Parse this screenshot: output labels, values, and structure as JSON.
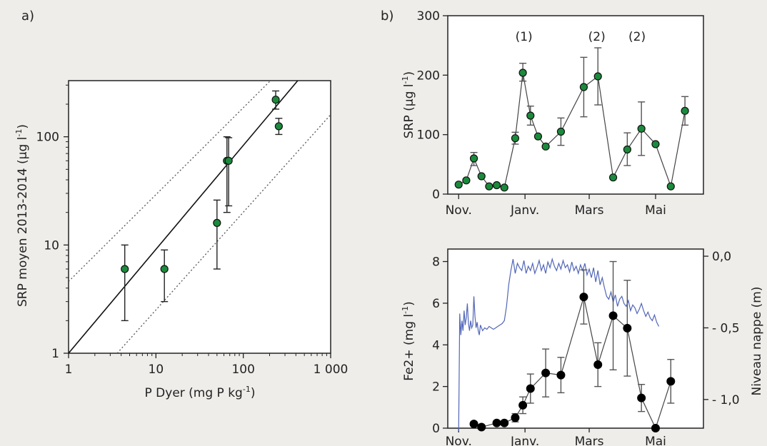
{
  "chart_data": [
    {
      "panel_label": "a)",
      "type": "scatter",
      "xscale": "log",
      "yscale": "log",
      "xlim": [
        1,
        1000
      ],
      "ylim": [
        1,
        330
      ],
      "xlabel_base": "P Dyer (mg P kg",
      "xlabel_sup": "-1",
      "xlabel_tail": ")",
      "ylabel_base": "SRP moyen 2013-2014 (µg l",
      "ylabel_sup": "-1",
      "ylabel_tail": ")",
      "xticks": [
        1,
        10,
        100,
        1000
      ],
      "xtick_labels": [
        "1",
        "10",
        "100",
        "1 000"
      ],
      "yticks": [
        1,
        10,
        100
      ],
      "ytick_labels": [
        "1",
        "10",
        "100"
      ],
      "points": [
        {
          "x": 4.4,
          "y": 6.0,
          "lo": 2.0,
          "hi": 10.0
        },
        {
          "x": 12.5,
          "y": 6.0,
          "lo": 3.0,
          "hi": 9.0
        },
        {
          "x": 50,
          "y": 16,
          "lo": 6.0,
          "hi": 26
        },
        {
          "x": 65,
          "y": 60,
          "lo": 20,
          "hi": 100
        },
        {
          "x": 68,
          "y": 60,
          "lo": 23,
          "hi": 98
        },
        {
          "x": 235,
          "y": 220,
          "lo": 180,
          "hi": 265
        },
        {
          "x": 255,
          "y": 125,
          "lo": 105,
          "hi": 148
        }
      ],
      "fit_line": [
        [
          1,
          1
        ],
        [
          420,
          330
        ]
      ],
      "ci_upper": [
        [
          1,
          4.6
        ],
        [
          205,
          330
        ]
      ],
      "ci_lower": [
        [
          3.6,
          1
        ],
        [
          1000,
          160
        ]
      ],
      "marker_color": "#1b8a3c"
    },
    {
      "panel_label": "b)",
      "type": "line",
      "ylabel_base": "SRP (µg l",
      "ylabel_sup": "-1",
      "ylabel_tail": ")",
      "ylim": [
        0,
        300
      ],
      "yticks": [
        0,
        100,
        200,
        300
      ],
      "xticks": [
        0,
        61,
        120,
        181
      ],
      "xtick_labels": [
        "Nov.",
        "Janv.",
        "Mars",
        "Mai"
      ],
      "xlim": [
        -10,
        225
      ],
      "annotations": [
        {
          "text": "(1)",
          "x": 60,
          "y": 265
        },
        {
          "text": "(2)",
          "x": 127,
          "y": 265
        },
        {
          "text": "(2)",
          "x": 164,
          "y": 265
        }
      ],
      "points": [
        {
          "x": 0,
          "y": 16
        },
        {
          "x": 7,
          "y": 23
        },
        {
          "x": 14,
          "y": 60,
          "lo": 48,
          "hi": 70
        },
        {
          "x": 21,
          "y": 30
        },
        {
          "x": 28,
          "y": 13
        },
        {
          "x": 35,
          "y": 15
        },
        {
          "x": 42,
          "y": 11
        },
        {
          "x": 52,
          "y": 94,
          "lo": 84,
          "hi": 104
        },
        {
          "x": 59,
          "y": 204,
          "lo": 190,
          "hi": 220
        },
        {
          "x": 66,
          "y": 132,
          "lo": 116,
          "hi": 148
        },
        {
          "x": 73,
          "y": 97
        },
        {
          "x": 80,
          "y": 80
        },
        {
          "x": 94,
          "y": 105,
          "lo": 82,
          "hi": 128
        },
        {
          "x": 115,
          "y": 180,
          "lo": 130,
          "hi": 230
        },
        {
          "x": 128,
          "y": 198,
          "lo": 150,
          "hi": 246
        },
        {
          "x": 142,
          "y": 28
        },
        {
          "x": 155,
          "y": 75,
          "lo": 48,
          "hi": 103
        },
        {
          "x": 168,
          "y": 110,
          "lo": 65,
          "hi": 155
        },
        {
          "x": 181,
          "y": 84
        },
        {
          "x": 195,
          "y": 13
        },
        {
          "x": 208,
          "y": 140,
          "lo": 116,
          "hi": 164
        }
      ],
      "marker_color": "#1b8a3c"
    },
    {
      "type": "line",
      "ylabel": "Fe2+ (mg l",
      "ylabel_sup": "-1",
      "ylabel_tail": ")",
      "ylim": [
        0,
        8.6
      ],
      "yticks": [
        0,
        2,
        4,
        6,
        8
      ],
      "y2label": "Niveau nappe (m)",
      "y2lim": [
        -1.2,
        0.05
      ],
      "y2ticks": [
        0.0,
        -0.5,
        -1.0
      ],
      "y2tick_labels": [
        "0,0",
        "- 0,5",
        "- 1,0"
      ],
      "xticks": [
        0,
        61,
        120,
        181
      ],
      "xtick_labels": [
        "Nov.",
        "Janv.",
        "Mars",
        "Mai"
      ],
      "xlim": [
        -10,
        225
      ],
      "fe_series": [
        {
          "x": 14,
          "y": 0.2
        },
        {
          "x": 21,
          "y": 0.05
        },
        {
          "x": 35,
          "y": 0.25
        },
        {
          "x": 42,
          "y": 0.25
        },
        {
          "x": 52,
          "y": 0.5,
          "lo": 0.3,
          "hi": 0.7
        },
        {
          "x": 59,
          "y": 1.1,
          "lo": 0.7,
          "hi": 1.5
        },
        {
          "x": 66,
          "y": 1.9,
          "lo": 1.2,
          "hi": 2.6
        },
        {
          "x": 80,
          "y": 2.65,
          "lo": 1.5,
          "hi": 3.8
        },
        {
          "x": 94,
          "y": 2.55,
          "lo": 1.7,
          "hi": 3.4
        },
        {
          "x": 115,
          "y": 6.3,
          "lo": 5.0,
          "hi": 7.6
        },
        {
          "x": 128,
          "y": 3.05,
          "lo": 2.0,
          "hi": 4.1
        },
        {
          "x": 142,
          "y": 5.4,
          "lo": 2.8,
          "hi": 8.0
        },
        {
          "x": 155,
          "y": 4.8,
          "lo": 2.5,
          "hi": 7.1
        },
        {
          "x": 168,
          "y": 1.45,
          "lo": 0.8,
          "hi": 2.1
        },
        {
          "x": 181,
          "y": 0.0
        },
        {
          "x": 195,
          "y": 2.25,
          "lo": 1.2,
          "hi": 3.3
        }
      ],
      "water_table": {
        "color": "#5266b8",
        "x": [
          0,
          1,
          2,
          3,
          4,
          5,
          6,
          7,
          8,
          9,
          10,
          11,
          12,
          13,
          14,
          15,
          16,
          17,
          18,
          19,
          20,
          22,
          24,
          26,
          28,
          30,
          32,
          34,
          36,
          38,
          40,
          42,
          44,
          46,
          48,
          50,
          52,
          54,
          56,
          58,
          60,
          62,
          64,
          66,
          68,
          70,
          72,
          74,
          76,
          78,
          80,
          82,
          84,
          86,
          88,
          90,
          92,
          94,
          96,
          98,
          100,
          102,
          104,
          106,
          108,
          110,
          112,
          114,
          116,
          118,
          120,
          122,
          124,
          126,
          128,
          130,
          132,
          134,
          136,
          138,
          140,
          142,
          144,
          146,
          148,
          150,
          152,
          154,
          156,
          158,
          160,
          162,
          164,
          166,
          168,
          170,
          172,
          174,
          176,
          178,
          180,
          182,
          184
        ],
        "y": [
          -1.22,
          -0.4,
          -0.55,
          -0.45,
          -0.52,
          -0.38,
          -0.48,
          -0.43,
          -0.33,
          -0.47,
          -0.52,
          -0.45,
          -0.5,
          -0.48,
          -0.28,
          -0.42,
          -0.5,
          -0.46,
          -0.52,
          -0.55,
          -0.48,
          -0.52,
          -0.5,
          -0.51,
          -0.49,
          -0.5,
          -0.51,
          -0.5,
          -0.49,
          -0.48,
          -0.47,
          -0.45,
          -0.35,
          -0.2,
          -0.1,
          -0.02,
          -0.12,
          -0.05,
          -0.08,
          -0.1,
          -0.03,
          -0.12,
          -0.07,
          -0.1,
          -0.05,
          -0.12,
          -0.08,
          -0.03,
          -0.1,
          -0.06,
          -0.12,
          -0.04,
          -0.08,
          -0.02,
          -0.07,
          -0.1,
          -0.05,
          -0.09,
          -0.03,
          -0.08,
          -0.06,
          -0.11,
          -0.04,
          -0.1,
          -0.07,
          -0.12,
          -0.06,
          -0.1,
          -0.05,
          -0.13,
          -0.09,
          -0.15,
          -0.08,
          -0.18,
          -0.1,
          -0.2,
          -0.15,
          -0.22,
          -0.28,
          -0.3,
          -0.25,
          -0.32,
          -0.27,
          -0.35,
          -0.3,
          -0.28,
          -0.33,
          -0.35,
          -0.31,
          -0.38,
          -0.34,
          -0.36,
          -0.4,
          -0.37,
          -0.33,
          -0.38,
          -0.42,
          -0.39,
          -0.43,
          -0.45,
          -0.41,
          -0.46,
          -0.49
        ]
      }
    }
  ]
}
